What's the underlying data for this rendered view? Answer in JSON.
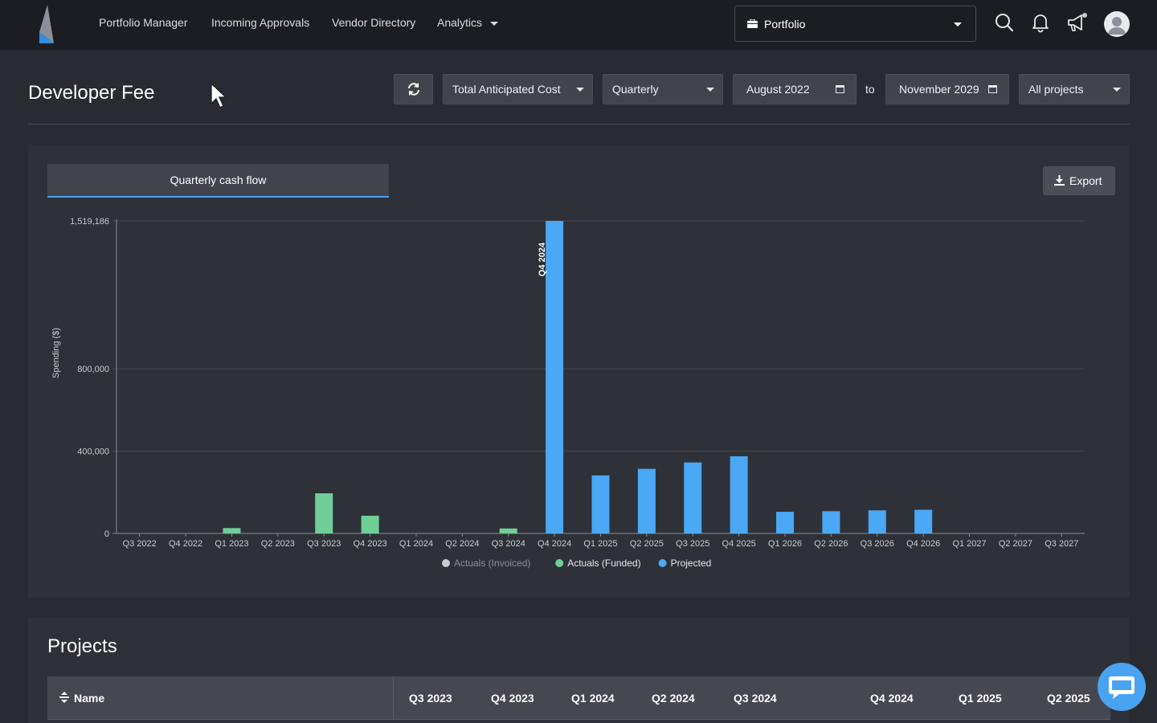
{
  "nav": {
    "links": [
      "Portfolio Manager",
      "Incoming Approvals",
      "Vendor Directory",
      "Analytics"
    ],
    "portfolio_select": "Portfolio",
    "icons": [
      "search-icon",
      "bell-icon",
      "megaphone-icon",
      "avatar"
    ]
  },
  "header": {
    "title": "Developer Fee",
    "metric_select": "Total Anticipated Cost",
    "period_select": "Quarterly",
    "date_from": "August 2022",
    "to_label": "to",
    "date_to": "November 2029",
    "projects_select": "All projects"
  },
  "panel": {
    "tab_label": "Quarterly cash flow",
    "export_label": "Export"
  },
  "chart_data": {
    "type": "bar",
    "ylabel": "Spending ($)",
    "ylim": [
      0,
      1519186
    ],
    "yticks": [
      0,
      400000,
      800000,
      1519186
    ],
    "ytick_labels": [
      "0",
      "400,000",
      "800,000",
      "1,519,186"
    ],
    "categories": [
      "Q3 2022",
      "Q4 2022",
      "Q1 2023",
      "Q2 2023",
      "Q3 2023",
      "Q4 2023",
      "Q1 2024",
      "Q2 2024",
      "Q3 2024",
      "Q4 2024",
      "Q1 2025",
      "Q2 2025",
      "Q3 2025",
      "Q4 2025",
      "Q1 2026",
      "Q2 2026",
      "Q3 2026",
      "Q4 2026",
      "Q1 2027",
      "Q2 2027",
      "Q3 2027"
    ],
    "series": [
      {
        "name": "Actuals (Invoiced)",
        "color": "#c9cacd",
        "values": [
          0,
          0,
          0,
          0,
          0,
          0,
          0,
          0,
          0,
          0,
          0,
          0,
          0,
          0,
          0,
          0,
          0,
          0,
          0,
          0,
          0
        ]
      },
      {
        "name": "Actuals (Funded)",
        "color": "#6fcf97",
        "values": [
          0,
          0,
          26000,
          0,
          195000,
          86000,
          0,
          0,
          24000,
          0,
          0,
          0,
          0,
          0,
          0,
          0,
          0,
          0,
          0,
          0,
          0
        ]
      },
      {
        "name": "Projected",
        "color": "#4aa8f5",
        "values": [
          0,
          0,
          0,
          0,
          0,
          0,
          0,
          0,
          0,
          1519186,
          282000,
          314000,
          345000,
          375000,
          105000,
          108000,
          112000,
          115000,
          0,
          0,
          0
        ]
      }
    ],
    "annotation": "Q4 2024",
    "legend_position": "bottom"
  },
  "projects": {
    "title": "Projects",
    "name_header": "Name",
    "columns": [
      "Q3 2023",
      "Q4 2023",
      "Q1 2024",
      "Q2 2024",
      "Q3 2024",
      "Q4 2024",
      "Q1 2025",
      "Q2 2025"
    ]
  }
}
